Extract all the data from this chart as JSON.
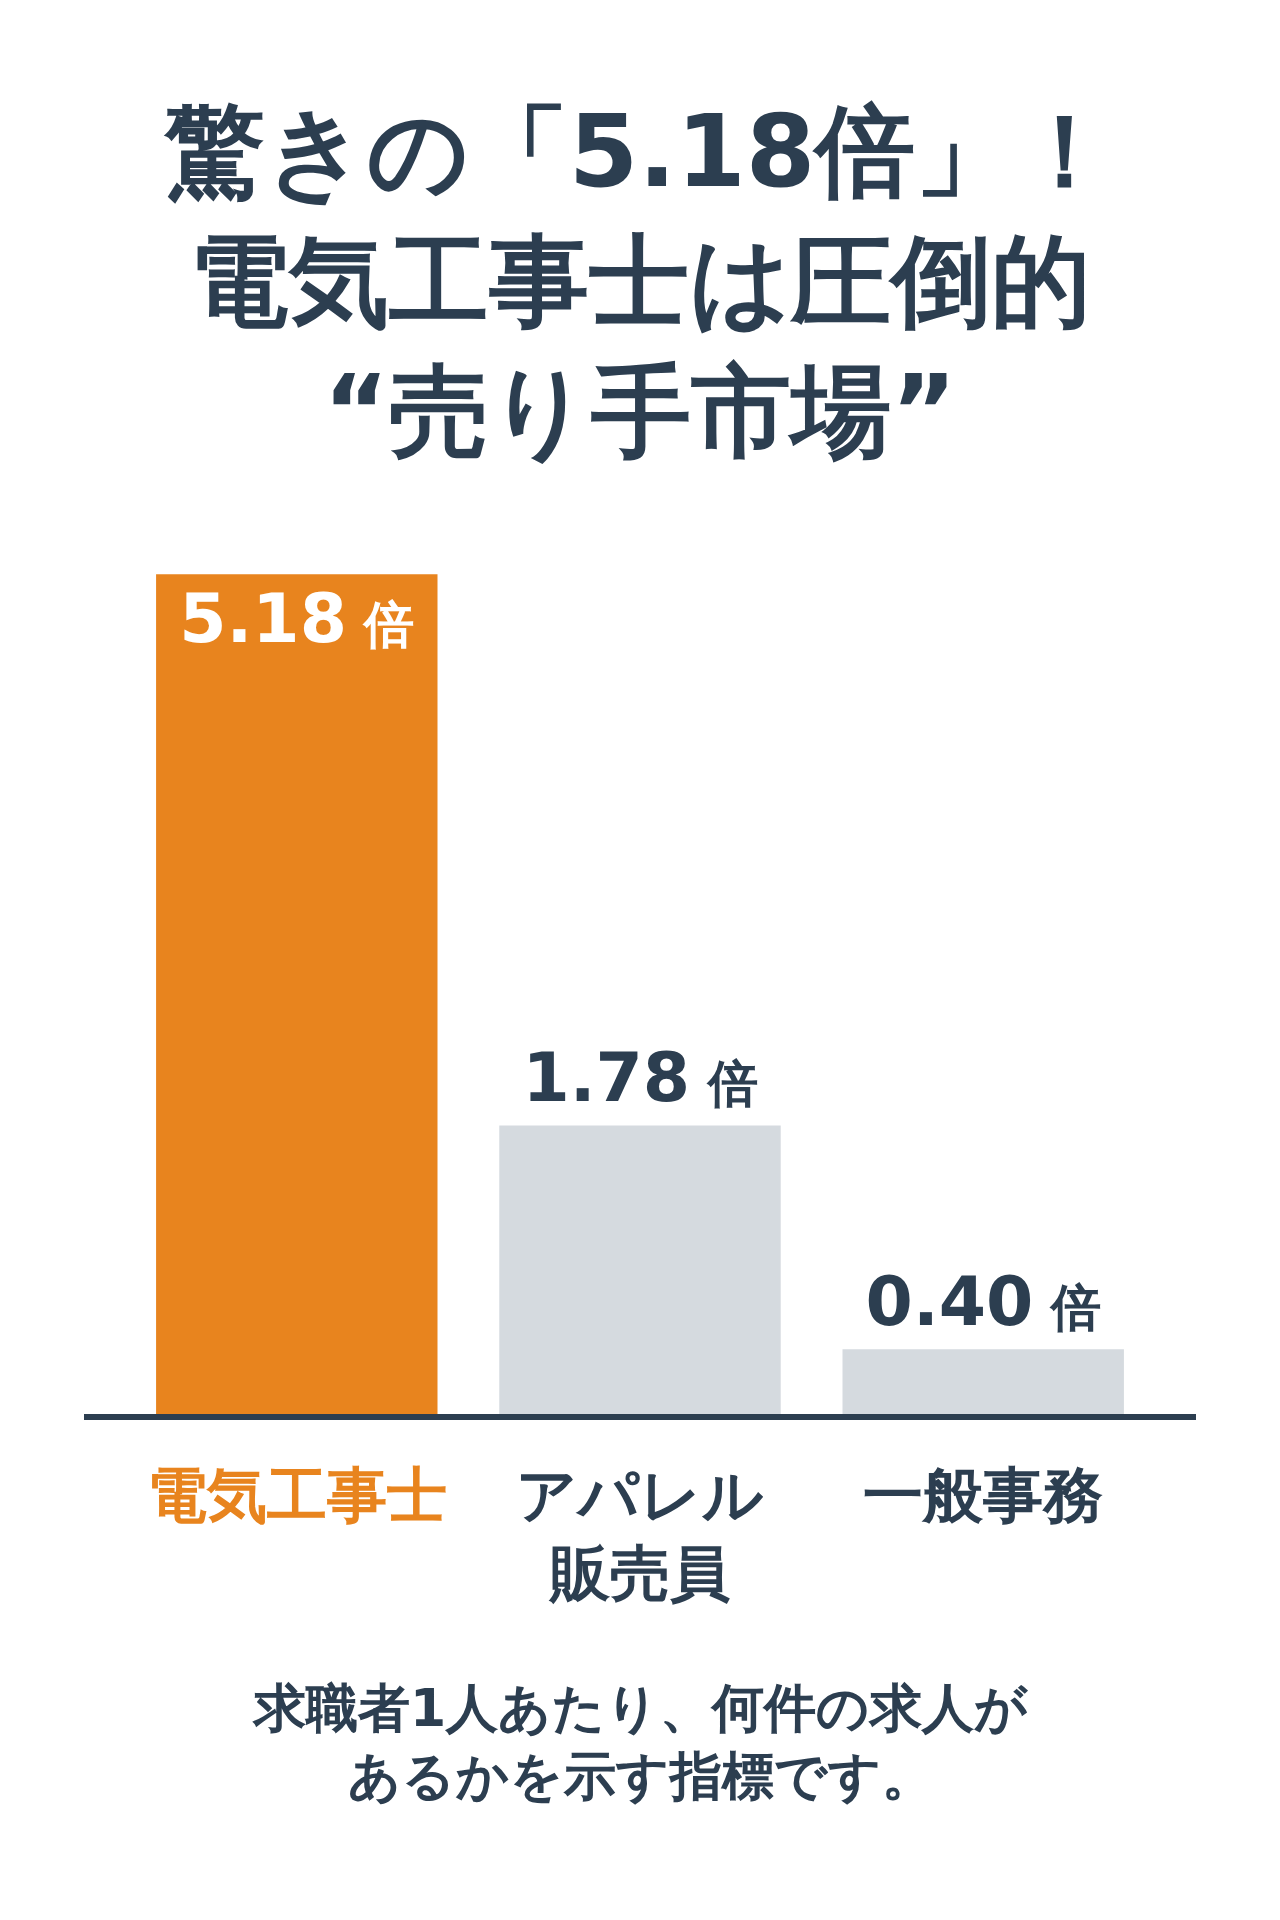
{
  "chart_data": {
    "type": "bar",
    "title": "驚きの「5.18倍」！電気工事士は圧倒的“売り手市場”",
    "categories": [
      "電気工事士",
      "アパレル販売員",
      "一般事務"
    ],
    "values": [
      5.18,
      1.78,
      0.4
    ],
    "colors": [
      "#e8841e",
      "#d5dadf",
      "#d5dadf"
    ],
    "value_labels": [
      "5.18倍",
      "1.78倍",
      "0.40倍"
    ],
    "annotations": [
      "求職者1人あたり、何件の求人があるかを示す指標です。"
    ],
    "tick_labels": "x"
  }
}
